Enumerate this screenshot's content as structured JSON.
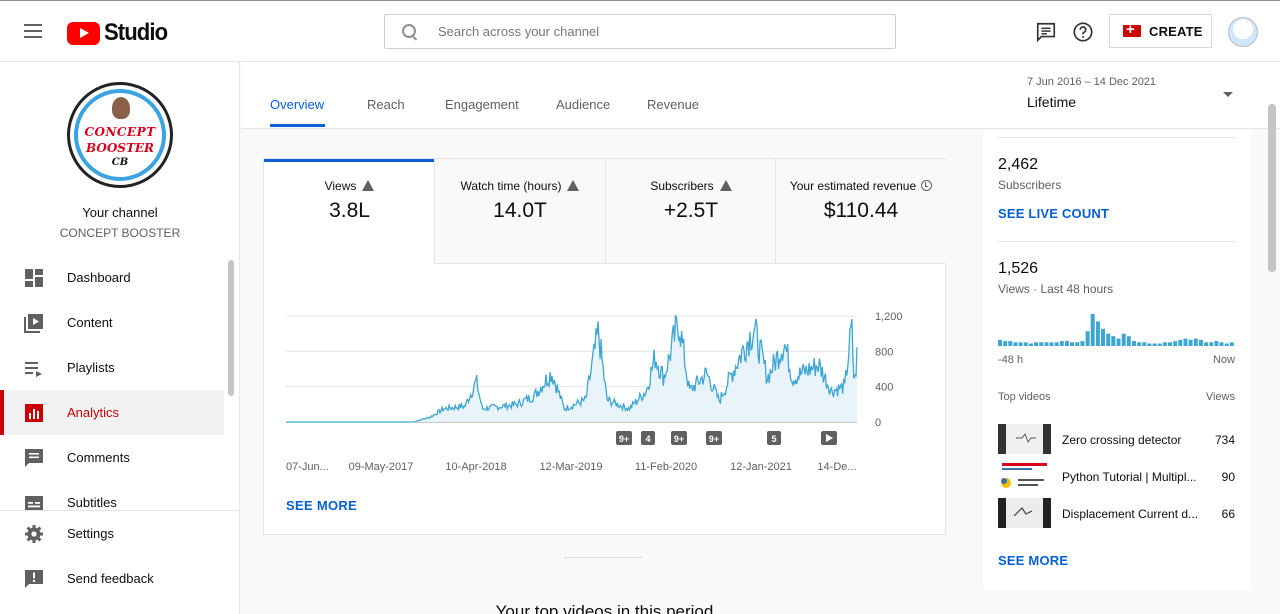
{
  "header": {
    "logo_text": "Studio",
    "search_placeholder": "Search across your channel",
    "create_label": "CREATE",
    "icons": [
      "menu-icon",
      "feedback-icon",
      "help-icon",
      "video-camera-icon",
      "avatar"
    ]
  },
  "sidebar": {
    "channel_avatar_text": [
      "CONCEPT",
      "BOOSTER",
      "CB"
    ],
    "your_channel": "Your channel",
    "channel_name": "CONCEPT BOOSTER",
    "items": [
      {
        "label": "Dashboard",
        "icon": "dashboard-icon"
      },
      {
        "label": "Content",
        "icon": "content-icon"
      },
      {
        "label": "Playlists",
        "icon": "playlists-icon"
      },
      {
        "label": "Analytics",
        "icon": "analytics-icon",
        "active": true
      },
      {
        "label": "Comments",
        "icon": "comments-icon"
      },
      {
        "label": "Subtitles",
        "icon": "subtitles-icon"
      }
    ],
    "bottom_items": [
      {
        "label": "Settings",
        "icon": "gear-icon"
      },
      {
        "label": "Send feedback",
        "icon": "send-feedback-icon"
      }
    ]
  },
  "tabs": [
    "Overview",
    "Reach",
    "Engagement",
    "Audience",
    "Revenue"
  ],
  "active_tab": "Overview",
  "date_picker": {
    "range": "7 Jun 2016 – 14 Dec 2021",
    "period": "Lifetime"
  },
  "metrics": [
    {
      "label": "Views",
      "value": "3.8L",
      "icon": "warning-icon"
    },
    {
      "label": "Watch time (hours)",
      "value": "14.0T",
      "icon": "warning-icon"
    },
    {
      "label": "Subscribers",
      "value": "+2.5T",
      "icon": "warning-icon"
    },
    {
      "label": "Your estimated revenue",
      "value": "$110.44",
      "icon": "clock-icon"
    }
  ],
  "chart_data": {
    "type": "area",
    "x_tick_labels": [
      "07-Jun...",
      "09-May-2017",
      "10-Apr-2018",
      "12-Mar-2019",
      "11-Feb-2020",
      "12-Jan-2021",
      "14-De..."
    ],
    "y_tick_labels": [
      "1,200",
      "800",
      "400",
      "0"
    ],
    "ylim": [
      0,
      1200
    ],
    "xlim": [
      "2016-06-07",
      "2021-12-14"
    ],
    "series": [
      {
        "values_approx_views_per_day": [
          [
            "2016-06-07",
            0
          ],
          [
            "2017-06-01",
            0
          ],
          [
            "2017-09-01",
            0
          ],
          [
            "2017-11-01",
            60
          ],
          [
            "2017-12-15",
            150
          ],
          [
            "2018-03-01",
            180
          ],
          [
            "2018-04-10",
            460
          ],
          [
            "2018-05-01",
            150
          ],
          [
            "2018-09-01",
            200
          ],
          [
            "2018-11-01",
            300
          ],
          [
            "2019-01-01",
            560
          ],
          [
            "2019-02-15",
            150
          ],
          [
            "2019-05-01",
            250
          ],
          [
            "2019-06-15",
            1020
          ],
          [
            "2019-07-15",
            250
          ],
          [
            "2019-10-01",
            150
          ],
          [
            "2019-12-01",
            350
          ],
          [
            "2020-01-01",
            740
          ],
          [
            "2020-02-01",
            500
          ],
          [
            "2020-03-25",
            1150
          ],
          [
            "2020-05-01",
            350
          ],
          [
            "2020-07-01",
            550
          ],
          [
            "2020-08-15",
            240
          ],
          [
            "2020-11-01",
            780
          ],
          [
            "2020-12-15",
            1060
          ],
          [
            "2021-02-01",
            500
          ],
          [
            "2021-04-01",
            900
          ],
          [
            "2021-05-01",
            500
          ],
          [
            "2021-08-01",
            650
          ],
          [
            "2021-09-15",
            350
          ],
          [
            "2021-11-01",
            400
          ],
          [
            "2021-11-25",
            1070
          ],
          [
            "2021-12-05",
            400
          ],
          [
            "2021-12-14",
            750
          ]
        ]
      }
    ],
    "markers": [
      "9+",
      "4",
      "9+",
      "9+",
      "5",
      "play"
    ],
    "color": "#3ea6d1",
    "grid": true
  },
  "see_more": "SEE MORE",
  "realtime": {
    "subscribers_value": "2,462",
    "subscribers_label": "Subscribers",
    "see_live_count": "SEE LIVE COUNT",
    "views_value": "1,526",
    "views_label": "Views · Last 48 hours",
    "axis_start": "-48 h",
    "axis_end": "Now",
    "top_videos_label": "Top videos",
    "views_col": "Views",
    "videos": [
      {
        "title": "Zero crossing detector",
        "views": "734"
      },
      {
        "title": "Python Tutorial | Multipl...",
        "views": "90"
      },
      {
        "title": "Displacement Current d...",
        "views": "66"
      }
    ],
    "see_more": "SEE MORE",
    "bar_heights_48h": [
      5,
      4,
      4,
      3,
      3,
      3,
      2,
      3,
      3,
      3,
      3,
      3,
      4,
      4,
      3,
      3,
      4,
      12,
      26,
      20,
      14,
      10,
      8,
      6,
      10,
      8,
      4,
      3,
      3,
      2,
      2,
      2,
      3,
      3,
      4,
      5,
      6,
      5,
      6,
      5,
      3,
      3,
      4,
      3,
      2,
      3
    ]
  },
  "top_videos_heading": "Your top videos in this period",
  "colors": {
    "accent": "#065fd4",
    "brand_red": "#ff0000",
    "active_red": "#cc0000",
    "chart": "#3ea6d1"
  }
}
